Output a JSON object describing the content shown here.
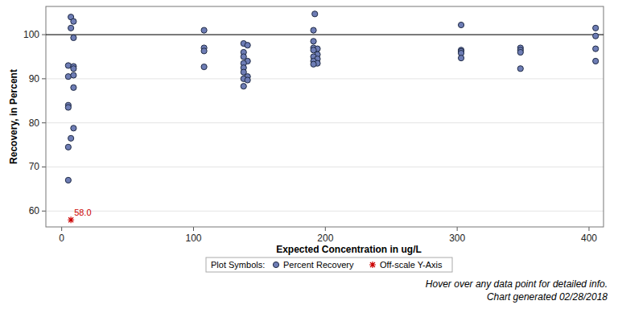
{
  "chart_data": {
    "type": "scatter",
    "x_label": "Expected Concentration in ug/L",
    "y_label": "Recovery, in Percent",
    "xlim": [
      -12,
      411
    ],
    "ylim": [
      56.4,
      106.4
    ],
    "xticks": [
      0,
      100,
      200,
      300,
      400
    ],
    "yticks": [
      60,
      70,
      80,
      90,
      100
    ],
    "grid": true,
    "legend": "bottom",
    "hlines": [
      100
    ],
    "annotations": [
      "Plot Symbols:",
      "Hover over any data point for detailed info.",
      "Chart generated 02/28/2018"
    ],
    "series": [
      {
        "name": "Percent Recovery",
        "color": "#6e7db5",
        "marker": "circle",
        "x": [
          5,
          5,
          5,
          5,
          5,
          5,
          7,
          7,
          7,
          9,
          9,
          9,
          9,
          9,
          9,
          9,
          108,
          108,
          108,
          108,
          138,
          141,
          138,
          138,
          141,
          138,
          138,
          138,
          141,
          138,
          141,
          138,
          192,
          191,
          191,
          191,
          194,
          191,
          194,
          191,
          194,
          191,
          194,
          191,
          303,
          303,
          303,
          303,
          303,
          348,
          348,
          348,
          348,
          405,
          405,
          405,
          405
        ],
        "values": [
          93,
          90.5,
          84,
          83.5,
          74.5,
          67,
          104,
          101.5,
          76.5,
          103,
          99.3,
          92.8,
          92.3,
          90.8,
          88,
          78.8,
          101,
          97,
          96.3,
          92.7,
          98,
          97.6,
          96,
          95,
          94,
          93.5,
          92.5,
          91.5,
          90.5,
          90,
          89.7,
          88.3,
          104.7,
          101,
          98.5,
          97,
          96.8,
          96.5,
          95.5,
          95,
          94.5,
          94,
          93.5,
          93.3,
          102.2,
          96.5,
          96.2,
          95.8,
          94.7,
          97,
          96.5,
          96,
          92.3,
          101.5,
          99.7,
          96.8,
          94
        ]
      },
      {
        "name": "Off-scale Y-Axis",
        "color": "#cc0000",
        "marker": "asterisk",
        "data_labels": true,
        "x": [
          7
        ],
        "values": [
          58.0
        ],
        "value_labels": [
          "58.0"
        ]
      }
    ]
  }
}
